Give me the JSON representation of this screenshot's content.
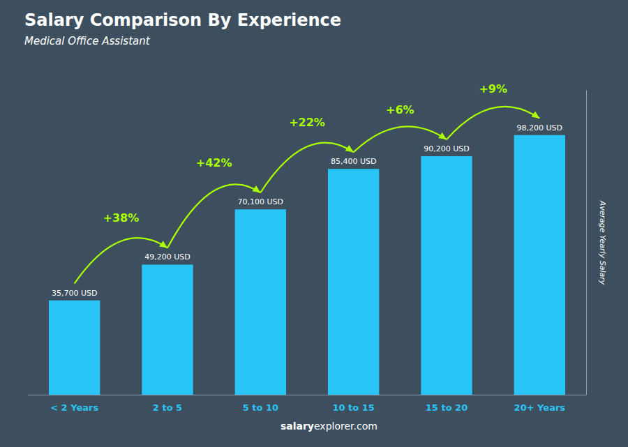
{
  "chart_data": {
    "type": "bar",
    "title": "Salary Comparison By Experience",
    "subtitle": "Medical Office Assistant",
    "categories": [
      "< 2 Years",
      "2 to 5",
      "5 to 10",
      "10 to 15",
      "15 to 20",
      "20+ Years"
    ],
    "values": [
      35700,
      49200,
      70100,
      85400,
      90200,
      98200
    ],
    "value_labels": [
      "35,700 USD",
      "49,200 USD",
      "70,100 USD",
      "85,400 USD",
      "90,200 USD",
      "98,200 USD"
    ],
    "data_labels": true,
    "annotations": [
      "+38%",
      "+42%",
      "+22%",
      "+6%",
      "+9%"
    ],
    "ylabel": "Average Yearly Salary",
    "footer": [
      "salary",
      "explorer.com"
    ],
    "color": "#29c5f6",
    "ylim": [
      0,
      115000
    ],
    "grid": false,
    "tick_labels": "x"
  }
}
